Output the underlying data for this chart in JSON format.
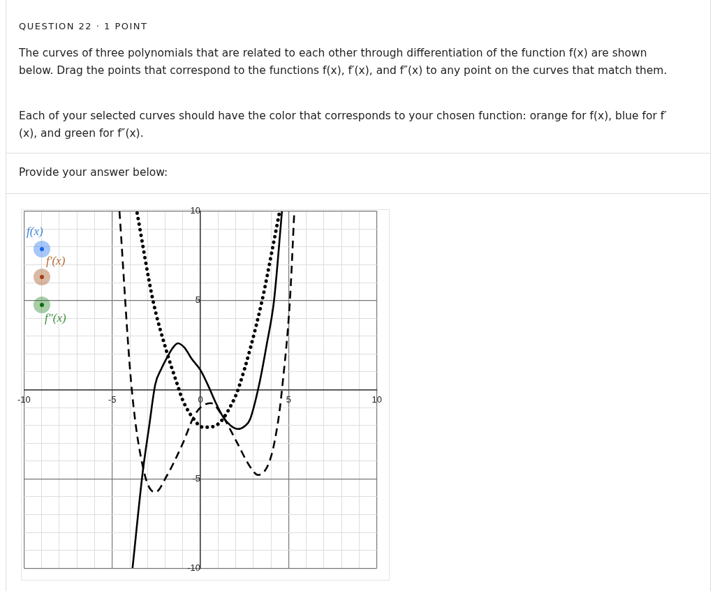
{
  "chart_data": {
    "type": "line",
    "title": "QUESTION 22 · 1 POINT",
    "subtitle": "The curves of three polynomials that are related to each other through differentiation of the function f(x) are shown below. Drag the points that correspond to the functions f(x), f′(x), and f″(x) to any point on the curves that match them.",
    "annotations": [
      "Each of your selected curves should have the color that corresponds to your chosen function: orange for f(x), blue for f′(x), and green for f″(x).",
      "Provide your answer below:",
      "f(x)",
      "f′(x)",
      "f″(x)"
    ],
    "series": [
      {
        "color": "#000000",
        "line_style": "dashed",
        "x": [
          -4.59,
          -3.91,
          -3.2,
          -2.56,
          -1.92,
          -1.02,
          -0.38,
          0,
          0.58,
          1.28,
          2.05,
          2.82,
          3.27,
          3.98,
          4.42,
          4.62,
          5.07,
          5.32
        ],
        "values": [
          10,
          0.2,
          -4.6,
          -5.75,
          -4.85,
          -3.05,
          -1.52,
          -1,
          -0.75,
          -1.52,
          -2.92,
          -4.33,
          -4.78,
          -3.82,
          -1.64,
          0,
          5,
          10
        ]
      },
      {
        "color": "#000000",
        "line_style": "solid",
        "x": [
          -3.85,
          -3.27,
          -2.9,
          -2.56,
          -2.2,
          -1.92,
          -1.6,
          -1.28,
          -0.9,
          -0.51,
          0,
          0.45,
          0.9,
          1.28,
          1.7,
          2.12,
          2.5,
          2.82,
          3.33,
          3.75,
          4.17,
          4.62
        ],
        "values": [
          -10,
          -4.6,
          -2,
          0.3,
          1.2,
          1.75,
          2.3,
          2.6,
          2.35,
          1.75,
          1.1,
          0.2,
          -0.8,
          -1.52,
          -2,
          -2.2,
          -2.05,
          -1.64,
          0.3,
          2.5,
          5,
          10
        ]
      },
      {
        "color": "#000000",
        "line_style": "dotted",
        "x": [
          -3.59,
          -2.69,
          -1.92,
          -1.28,
          -1.02,
          -0.38,
          0.13,
          0.45,
          1.09,
          1.8,
          2.18,
          3.46,
          4.1,
          4.49
        ],
        "values": [
          9.9,
          5,
          2.15,
          0.2,
          -0.55,
          -1.65,
          -2.1,
          -2.1,
          -1.85,
          -0.75,
          0.15,
          4.85,
          8,
          10
        ]
      }
    ],
    "xlim": [
      -10,
      10
    ],
    "ylim": [
      -10,
      10
    ],
    "xticks": [
      -10,
      {
        "value": -9,
        "label": null
      },
      {
        "value": -8,
        "label": null
      },
      {
        "value": -7,
        "label": null
      },
      {
        "value": -6,
        "label": null
      },
      -5,
      {
        "value": -4,
        "label": null
      },
      {
        "value": -3,
        "label": null
      },
      {
        "value": -2,
        "label": null
      },
      {
        "value": -1,
        "label": null
      },
      0,
      {
        "value": 1,
        "label": null
      },
      {
        "value": 2,
        "label": null
      },
      {
        "value": 3,
        "label": null
      },
      {
        "value": 4,
        "label": null
      },
      5,
      {
        "value": 6,
        "label": null
      },
      {
        "value": 7,
        "label": null
      },
      {
        "value": 8,
        "label": null
      },
      {
        "value": 9,
        "label": null
      },
      10
    ],
    "yticks": [
      -10,
      {
        "value": -9,
        "label": null
      },
      {
        "value": -8,
        "label": null
      },
      {
        "value": -7,
        "label": null
      },
      {
        "value": -6,
        "label": null
      },
      -5,
      {
        "value": -4,
        "label": null
      },
      {
        "value": -3,
        "label": null
      },
      {
        "value": -2,
        "label": null
      },
      {
        "value": -1,
        "label": null
      },
      {
        "value": 0,
        "label": null
      },
      {
        "value": 1,
        "label": null
      },
      {
        "value": 2,
        "label": null
      },
      {
        "value": 3,
        "label": null
      },
      {
        "value": 4,
        "label": null
      },
      5,
      {
        "value": 6,
        "label": null
      },
      {
        "value": 7,
        "label": null
      },
      {
        "value": 8,
        "label": null
      },
      {
        "value": 9,
        "label": null
      },
      10
    ],
    "grid": true,
    "legend": false,
    "marker": "none"
  }
}
